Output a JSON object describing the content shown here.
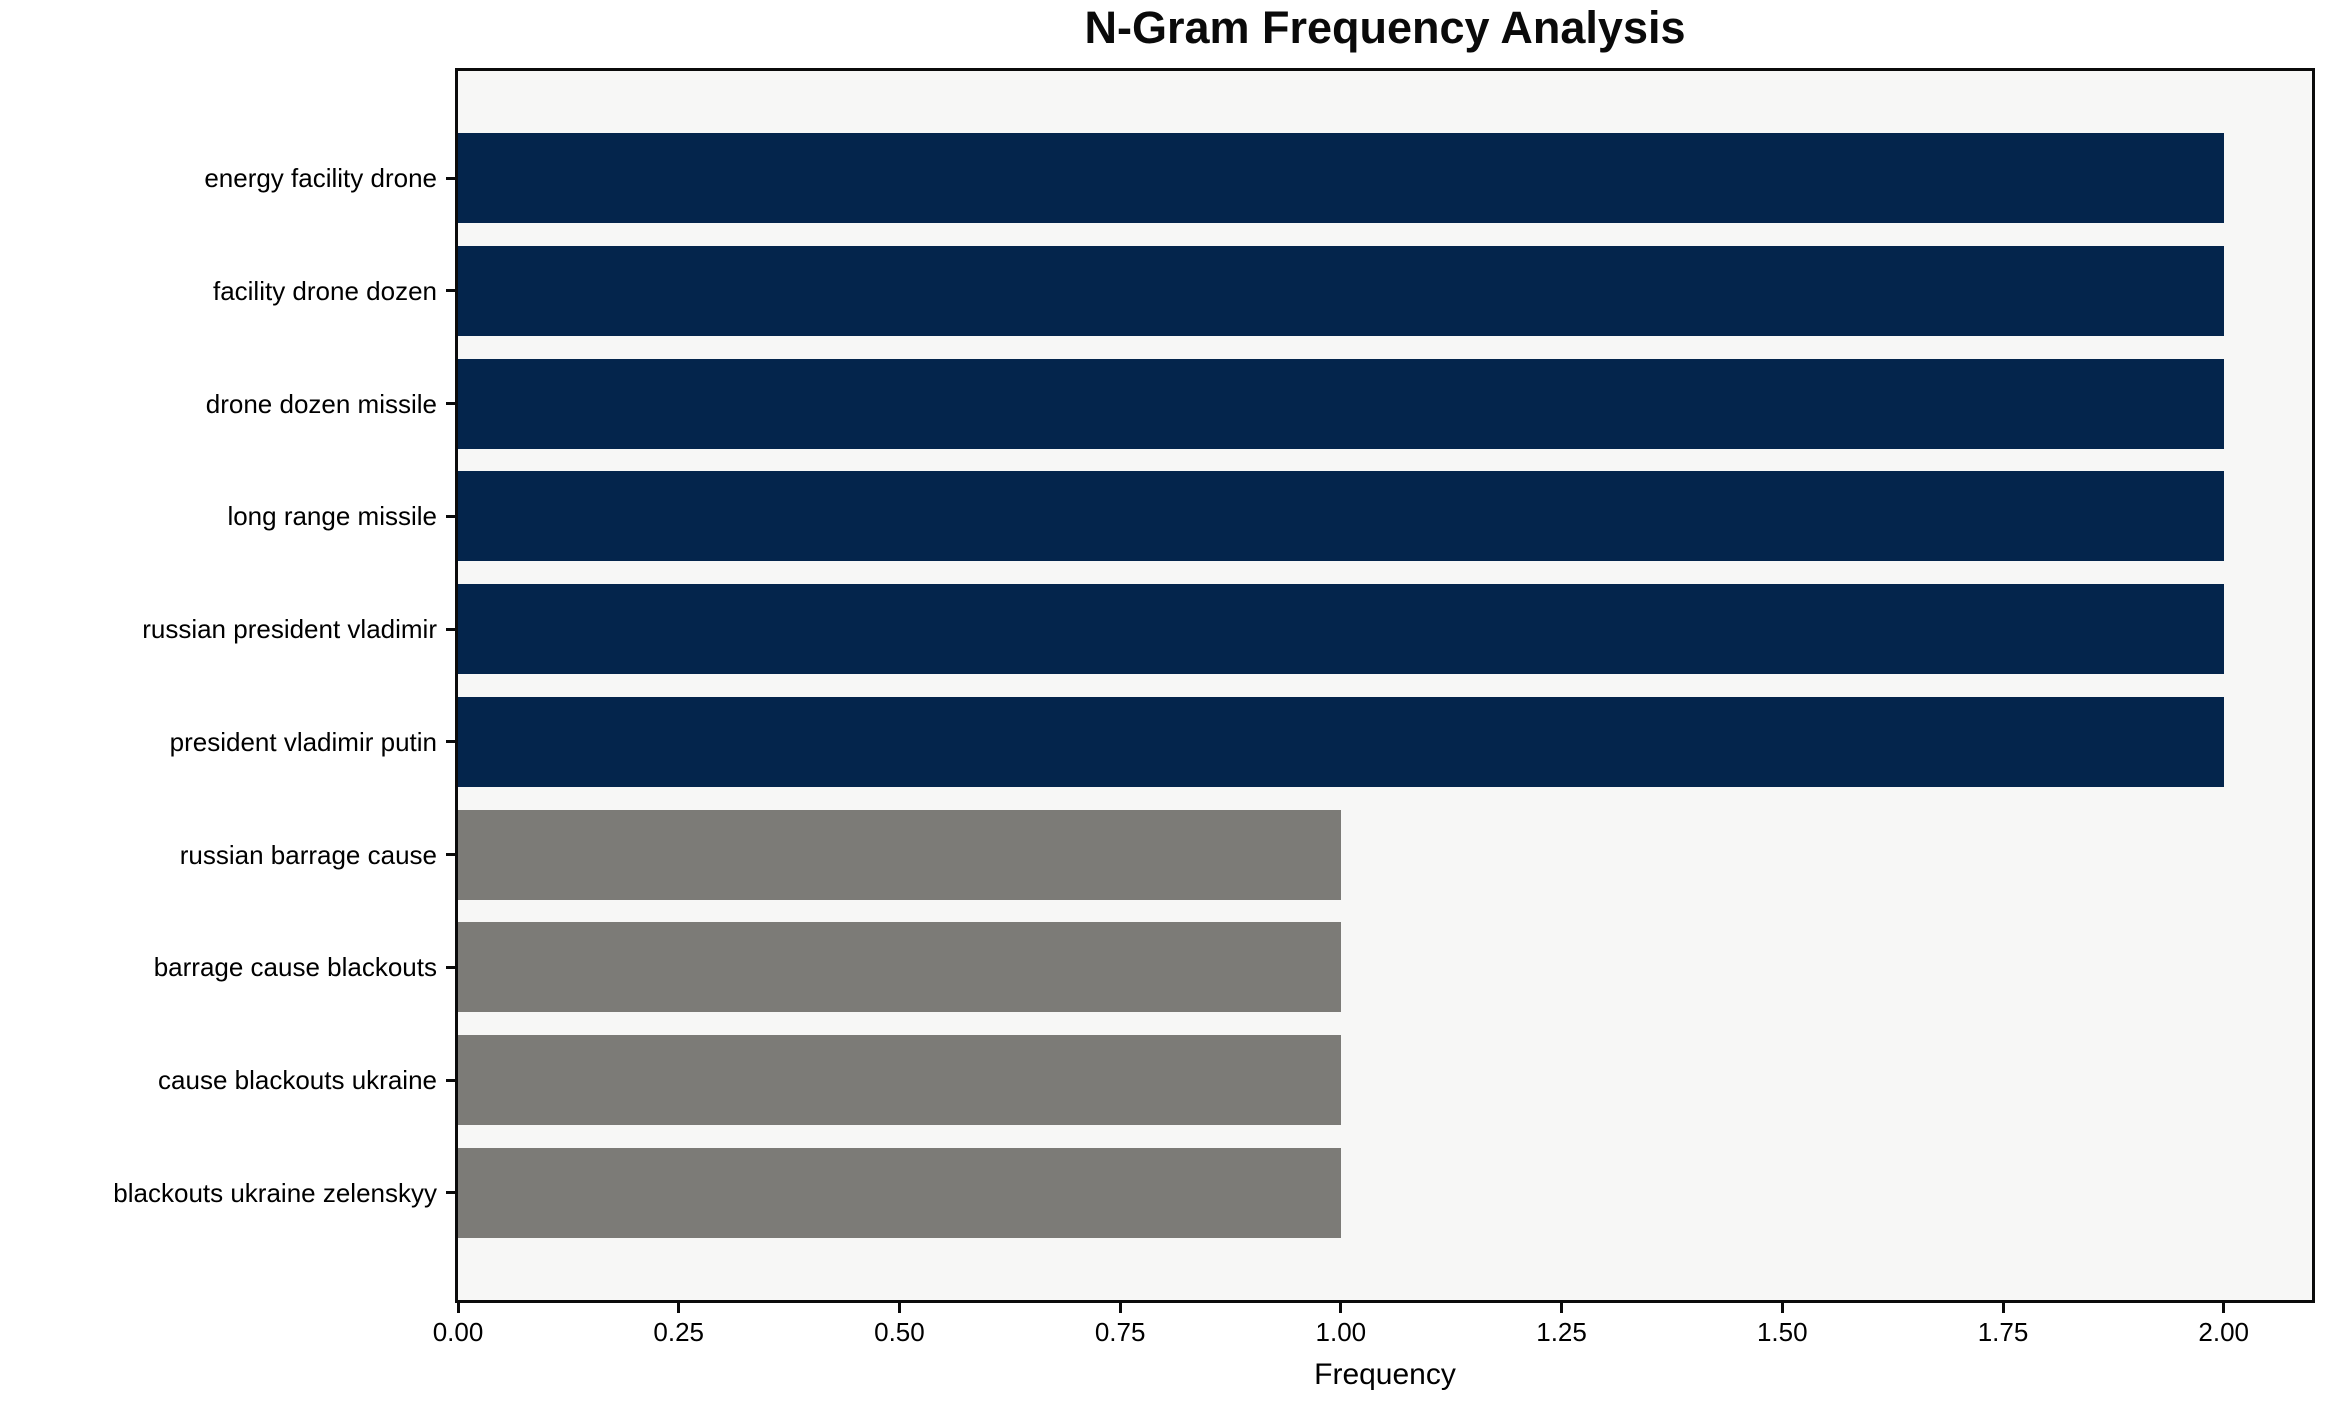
{
  "chart_data": {
    "type": "bar",
    "orientation": "horizontal",
    "title": "N-Gram Frequency Analysis",
    "xlabel": "Frequency",
    "ylabel": "",
    "categories": [
      "energy facility drone",
      "facility drone dozen",
      "drone dozen missile",
      "long range missile",
      "russian president vladimir",
      "president vladimir putin",
      "russian barrage cause",
      "barrage cause blackouts",
      "cause blackouts ukraine",
      "blackouts ukraine zelenskyy"
    ],
    "values": [
      2,
      2,
      2,
      2,
      2,
      2,
      1,
      1,
      1,
      1
    ],
    "bar_colors": [
      "#04254c",
      "#04254c",
      "#04254c",
      "#04254c",
      "#04254c",
      "#04254c",
      "#7c7b77",
      "#7c7b77",
      "#7c7b77",
      "#7c7b77"
    ],
    "xlim": [
      0,
      2.1
    ],
    "xtick_values": [
      0,
      0.25,
      0.5,
      0.75,
      1.0,
      1.25,
      1.5,
      1.75,
      2.0
    ],
    "xtick_labels": [
      "0.00",
      "0.25",
      "0.50",
      "0.75",
      "1.00",
      "1.25",
      "1.50",
      "1.75",
      "2.00"
    ],
    "grid": false,
    "legend": "none",
    "palette": {
      "frequency_2": "#04254c",
      "frequency_1": "#7c7b77",
      "plot_background": "#f7f7f6",
      "figure_background": "#ffffff",
      "spine": "#0b0b0b",
      "text": "#000000"
    }
  }
}
